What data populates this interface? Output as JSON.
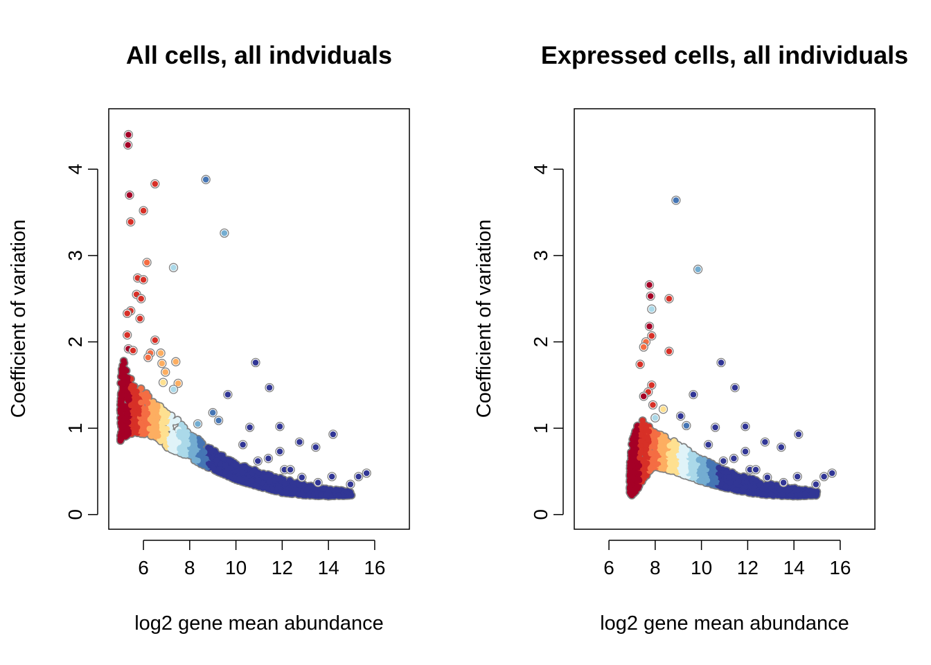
{
  "chart_data": [
    {
      "type": "scatter",
      "title": "All cells, all indviduals",
      "xlabel": "log2 gene mean abundance",
      "ylabel": "Coefficient of variation",
      "xlim": [
        4.5,
        17.5
      ],
      "ylim": [
        -0.17,
        4.7
      ],
      "xticks": [
        "6",
        "8",
        "10",
        "12",
        "14",
        "16"
      ],
      "yticks": [
        "0",
        "1",
        "2",
        "3",
        "4"
      ],
      "grid": false,
      "color_palette": [
        "#a50026",
        "#d73027",
        "#f46d43",
        "#fdae61",
        "#fee090",
        "#e0f3f8",
        "#abd9e9",
        "#74add1",
        "#4575b4",
        "#313695"
      ],
      "outline_color": "#808080",
      "bulk_curve": {
        "x": [
          5.0,
          5.2,
          5.6,
          6.0,
          6.5,
          7.0,
          7.5,
          8.0,
          8.5,
          9.0,
          10.0,
          11.0,
          12.0,
          13.0,
          14.0,
          15.0
        ],
        "upper": [
          1.9,
          1.75,
          1.5,
          1.45,
          1.3,
          1.2,
          1.1,
          0.95,
          0.85,
          0.75,
          0.6,
          0.5,
          0.42,
          0.35,
          0.3,
          0.27
        ],
        "lower": [
          0.85,
          0.9,
          0.95,
          0.93,
          0.9,
          0.78,
          0.72,
          0.66,
          0.58,
          0.52,
          0.4,
          0.32,
          0.25,
          0.22,
          0.21,
          0.22
        ]
      },
      "points": [
        {
          "x": 5.35,
          "y": 4.4,
          "c": "#a50026"
        },
        {
          "x": 5.33,
          "y": 4.28,
          "c": "#a50026"
        },
        {
          "x": 5.4,
          "y": 3.7,
          "c": "#a50026"
        },
        {
          "x": 6.5,
          "y": 3.83,
          "c": "#d73027"
        },
        {
          "x": 6.0,
          "y": 3.52,
          "c": "#d73027"
        },
        {
          "x": 5.45,
          "y": 3.39,
          "c": "#d73027"
        },
        {
          "x": 8.7,
          "y": 3.88,
          "c": "#4575b4"
        },
        {
          "x": 9.5,
          "y": 3.26,
          "c": "#74add1"
        },
        {
          "x": 7.3,
          "y": 2.86,
          "c": "#abd9e9"
        },
        {
          "x": 6.15,
          "y": 2.92,
          "c": "#f46d43"
        },
        {
          "x": 5.75,
          "y": 2.74,
          "c": "#d73027"
        },
        {
          "x": 6.0,
          "y": 2.72,
          "c": "#d73027"
        },
        {
          "x": 5.7,
          "y": 2.55,
          "c": "#d73027"
        },
        {
          "x": 5.9,
          "y": 2.5,
          "c": "#d73027"
        },
        {
          "x": 5.45,
          "y": 2.36,
          "c": "#d73027"
        },
        {
          "x": 5.3,
          "y": 2.33,
          "c": "#d73027"
        },
        {
          "x": 5.85,
          "y": 2.27,
          "c": "#d73027"
        },
        {
          "x": 5.3,
          "y": 2.08,
          "c": "#d73027"
        },
        {
          "x": 6.5,
          "y": 2.02,
          "c": "#d73027"
        },
        {
          "x": 5.35,
          "y": 1.92,
          "c": "#a50026"
        },
        {
          "x": 5.55,
          "y": 1.9,
          "c": "#d73027"
        },
        {
          "x": 6.3,
          "y": 1.87,
          "c": "#f46d43"
        },
        {
          "x": 6.75,
          "y": 1.87,
          "c": "#fdae61"
        },
        {
          "x": 6.2,
          "y": 1.82,
          "c": "#f46d43"
        },
        {
          "x": 7.4,
          "y": 1.77,
          "c": "#fdae61"
        },
        {
          "x": 6.8,
          "y": 1.75,
          "c": "#fdae61"
        },
        {
          "x": 6.95,
          "y": 1.65,
          "c": "#fdae61"
        },
        {
          "x": 6.85,
          "y": 1.53,
          "c": "#fee090"
        },
        {
          "x": 7.5,
          "y": 1.52,
          "c": "#fdae61"
        },
        {
          "x": 7.3,
          "y": 1.45,
          "c": "#abd9e9"
        },
        {
          "x": 10.85,
          "y": 1.76,
          "c": "#313695"
        },
        {
          "x": 11.45,
          "y": 1.47,
          "c": "#313695"
        },
        {
          "x": 9.65,
          "y": 1.39,
          "c": "#313695"
        },
        {
          "x": 9.0,
          "y": 1.18,
          "c": "#4575b4"
        },
        {
          "x": 9.25,
          "y": 1.09,
          "c": "#4575b4"
        },
        {
          "x": 8.35,
          "y": 1.05,
          "c": "#74add1"
        },
        {
          "x": 10.6,
          "y": 1.01,
          "c": "#313695"
        },
        {
          "x": 11.9,
          "y": 1.02,
          "c": "#313695"
        },
        {
          "x": 14.2,
          "y": 0.93,
          "c": "#313695"
        },
        {
          "x": 12.75,
          "y": 0.84,
          "c": "#313695"
        },
        {
          "x": 10.3,
          "y": 0.81,
          "c": "#313695"
        },
        {
          "x": 13.45,
          "y": 0.78,
          "c": "#313695"
        },
        {
          "x": 11.9,
          "y": 0.73,
          "c": "#313695"
        },
        {
          "x": 11.4,
          "y": 0.65,
          "c": "#313695"
        },
        {
          "x": 10.95,
          "y": 0.62,
          "c": "#313695"
        },
        {
          "x": 12.1,
          "y": 0.52,
          "c": "#313695"
        },
        {
          "x": 12.35,
          "y": 0.52,
          "c": "#313695"
        },
        {
          "x": 15.65,
          "y": 0.48,
          "c": "#313695"
        },
        {
          "x": 15.3,
          "y": 0.44,
          "c": "#313695"
        },
        {
          "x": 14.15,
          "y": 0.44,
          "c": "#313695"
        },
        {
          "x": 12.85,
          "y": 0.43,
          "c": "#313695"
        },
        {
          "x": 14.95,
          "y": 0.35,
          "c": "#313695"
        },
        {
          "x": 13.55,
          "y": 0.37,
          "c": "#313695"
        }
      ]
    },
    {
      "type": "scatter",
      "title": "Expressed cells, all individuals",
      "xlabel": "log2 gene mean abundance",
      "ylabel": "Coefficient of variation",
      "xlim": [
        4.5,
        17.5
      ],
      "ylim": [
        -0.17,
        4.7
      ],
      "xticks": [
        "6",
        "8",
        "10",
        "12",
        "14",
        "16"
      ],
      "yticks": [
        "0",
        "1",
        "2",
        "3",
        "4"
      ],
      "grid": false,
      "color_palette": [
        "#a50026",
        "#d73027",
        "#f46d43",
        "#fdae61",
        "#fee090",
        "#e0f3f8",
        "#abd9e9",
        "#74add1",
        "#4575b4",
        "#313695"
      ],
      "outline_color": "#808080",
      "bulk_curve": {
        "x": [
          6.9,
          7.0,
          7.2,
          7.5,
          7.8,
          8.0,
          8.5,
          9.0,
          10.0,
          11.0,
          12.0,
          13.0,
          14.0,
          15.0
        ],
        "upper": [
          0.6,
          0.85,
          1.05,
          1.1,
          1.0,
          0.95,
          0.9,
          0.82,
          0.65,
          0.52,
          0.43,
          0.36,
          0.31,
          0.27
        ],
        "lower": [
          0.25,
          0.22,
          0.28,
          0.4,
          0.52,
          0.55,
          0.52,
          0.48,
          0.38,
          0.31,
          0.25,
          0.22,
          0.21,
          0.22
        ]
      },
      "points": [
        {
          "x": 8.9,
          "y": 3.64,
          "c": "#4575b4"
        },
        {
          "x": 9.85,
          "y": 2.84,
          "c": "#74add1"
        },
        {
          "x": 7.75,
          "y": 2.66,
          "c": "#a50026"
        },
        {
          "x": 7.8,
          "y": 2.53,
          "c": "#a50026"
        },
        {
          "x": 8.6,
          "y": 2.5,
          "c": "#d73027"
        },
        {
          "x": 7.85,
          "y": 2.38,
          "c": "#abd9e9"
        },
        {
          "x": 7.75,
          "y": 2.18,
          "c": "#a50026"
        },
        {
          "x": 7.85,
          "y": 2.07,
          "c": "#d73027"
        },
        {
          "x": 7.6,
          "y": 2.0,
          "c": "#f46d43"
        },
        {
          "x": 7.5,
          "y": 1.94,
          "c": "#f46d43"
        },
        {
          "x": 8.6,
          "y": 1.89,
          "c": "#d73027"
        },
        {
          "x": 7.35,
          "y": 1.74,
          "c": "#d73027"
        },
        {
          "x": 10.85,
          "y": 1.76,
          "c": "#313695"
        },
        {
          "x": 7.85,
          "y": 1.5,
          "c": "#d73027"
        },
        {
          "x": 11.45,
          "y": 1.47,
          "c": "#313695"
        },
        {
          "x": 7.7,
          "y": 1.42,
          "c": "#d73027"
        },
        {
          "x": 9.65,
          "y": 1.39,
          "c": "#313695"
        },
        {
          "x": 7.5,
          "y": 1.37,
          "c": "#a50026"
        },
        {
          "x": 7.9,
          "y": 1.27,
          "c": "#d73027"
        },
        {
          "x": 8.35,
          "y": 1.22,
          "c": "#fee090"
        },
        {
          "x": 8.0,
          "y": 1.12,
          "c": "#abd9e9"
        },
        {
          "x": 9.1,
          "y": 1.14,
          "c": "#313695"
        },
        {
          "x": 9.35,
          "y": 1.03,
          "c": "#4575b4"
        },
        {
          "x": 10.6,
          "y": 1.01,
          "c": "#313695"
        },
        {
          "x": 11.9,
          "y": 1.02,
          "c": "#313695"
        },
        {
          "x": 14.2,
          "y": 0.93,
          "c": "#313695"
        },
        {
          "x": 12.75,
          "y": 0.84,
          "c": "#313695"
        },
        {
          "x": 10.3,
          "y": 0.81,
          "c": "#313695"
        },
        {
          "x": 13.45,
          "y": 0.78,
          "c": "#313695"
        },
        {
          "x": 11.9,
          "y": 0.73,
          "c": "#313695"
        },
        {
          "x": 11.4,
          "y": 0.65,
          "c": "#313695"
        },
        {
          "x": 10.95,
          "y": 0.62,
          "c": "#313695"
        },
        {
          "x": 12.1,
          "y": 0.52,
          "c": "#313695"
        },
        {
          "x": 12.35,
          "y": 0.52,
          "c": "#313695"
        },
        {
          "x": 15.65,
          "y": 0.48,
          "c": "#313695"
        },
        {
          "x": 15.3,
          "y": 0.44,
          "c": "#313695"
        },
        {
          "x": 14.15,
          "y": 0.44,
          "c": "#313695"
        },
        {
          "x": 12.85,
          "y": 0.43,
          "c": "#313695"
        },
        {
          "x": 14.95,
          "y": 0.35,
          "c": "#313695"
        },
        {
          "x": 13.55,
          "y": 0.37,
          "c": "#313695"
        }
      ]
    }
  ]
}
